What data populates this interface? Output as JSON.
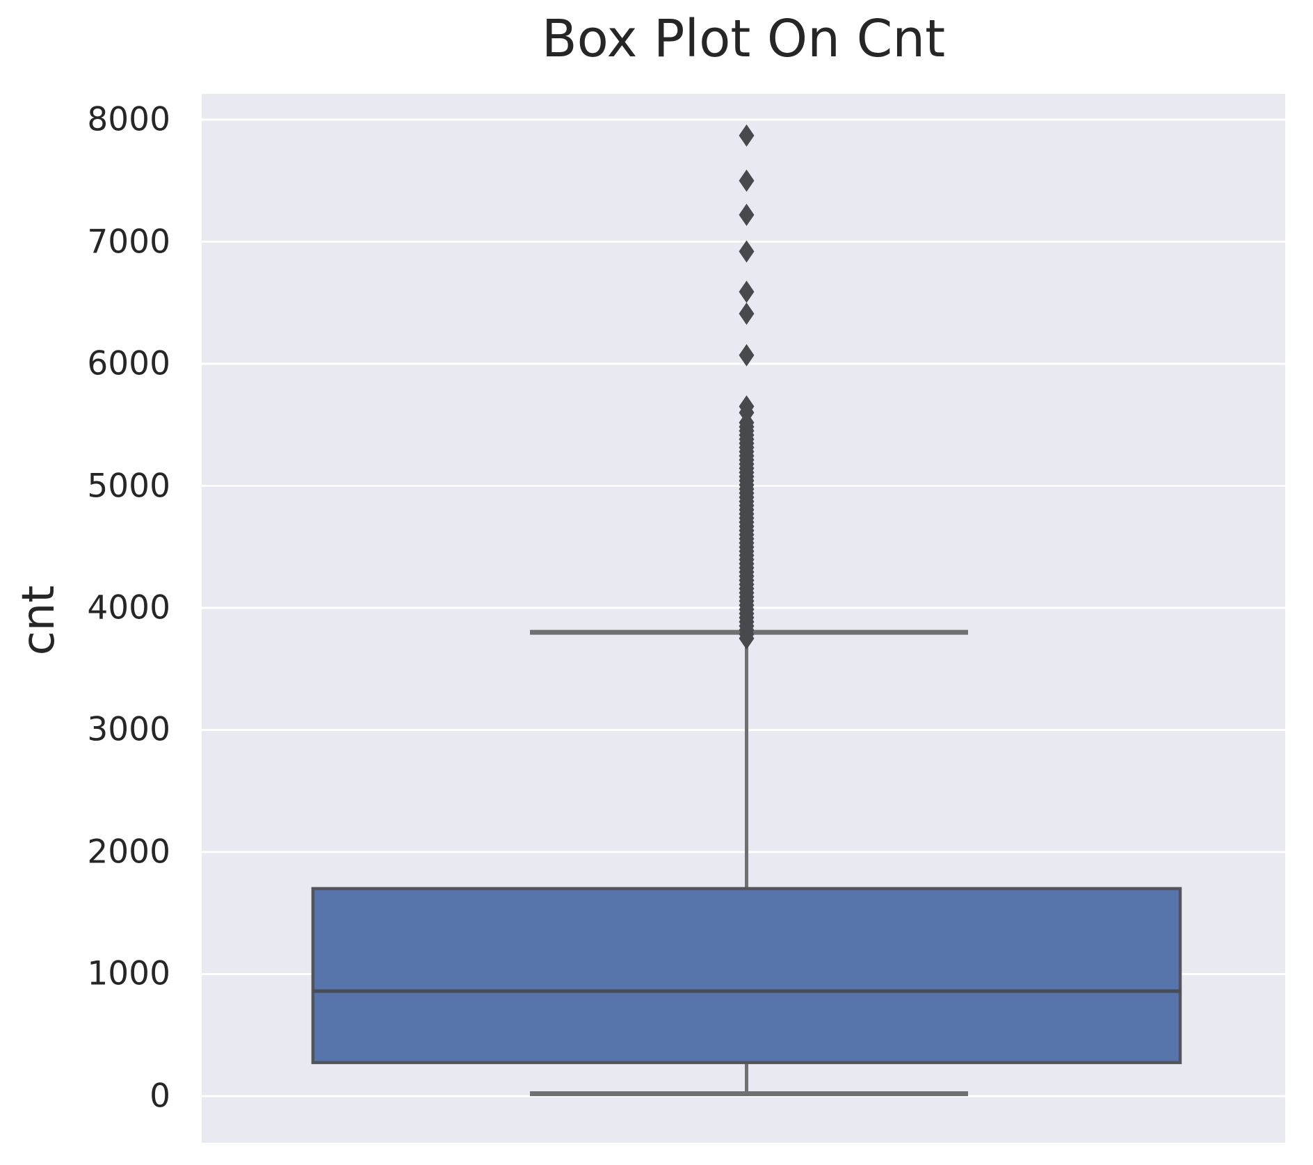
{
  "chart_data": {
    "type": "box",
    "title": "Box Plot On Cnt",
    "xlabel": "",
    "ylabel": "cnt",
    "yticks": [
      0,
      1000,
      2000,
      3000,
      4000,
      5000,
      6000,
      7000,
      8000
    ],
    "ytick_labels": [
      "0",
      "1000",
      "2000",
      "3000",
      "4000",
      "5000",
      "6000",
      "7000",
      "8000"
    ],
    "ylim": [
      -382,
      8211
    ],
    "grid": "horizontal-white-lines",
    "legend": "none",
    "box": {
      "whisker_low": 20,
      "q1": 275,
      "median": 860,
      "q3": 1700,
      "whisker_high": 3800
    },
    "outliers_discrete": [
      7870,
      7500,
      7220,
      6920,
      6590,
      6410,
      6070,
      5650,
      5600
    ],
    "outlier_cluster": {
      "from": 3750,
      "to": 5550,
      "step": 34
    },
    "colors": {
      "axes_background": "#e9e9f1",
      "gridline": "#ffffff",
      "box_fill": "#5775aa",
      "box_edge": "#53555c",
      "median_line": "#4a4d55",
      "whisker": "#707073",
      "flier": "#48494d",
      "text": "#262626"
    }
  }
}
